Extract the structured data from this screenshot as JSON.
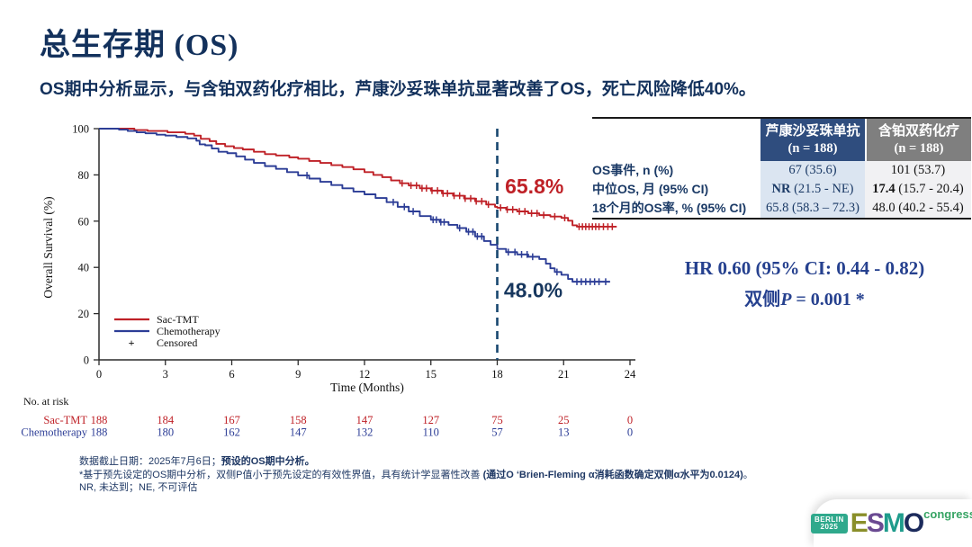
{
  "slide": {
    "title_cjk": "总生存期",
    "title_suffix": " (OS)",
    "subtitle": "OS期中分析显示，与含铂双药化疗相比，芦康沙妥珠单抗显著改善了OS，死亡风险降低40%。"
  },
  "chart_data": {
    "type": "line",
    "subtype": "kaplan-meier-step",
    "xlabel": "Time (Months)",
    "ylabel": "Overall Survival (%)",
    "xlim": [
      0,
      24
    ],
    "ylim": [
      0,
      100
    ],
    "xticks": [
      0,
      3,
      6,
      9,
      12,
      15,
      18,
      21,
      24
    ],
    "yticks": [
      0,
      20,
      40,
      60,
      80,
      100
    ],
    "grid": "off",
    "legend_position": "lower-left",
    "censored_label": "Censored",
    "reference_line": {
      "x": 18,
      "style": "dashed",
      "color": "#17466f"
    },
    "annotations": [
      {
        "text": "65.8%",
        "color": "#bf2127",
        "x": 18.35,
        "y": 72
      },
      {
        "text": "48.0%",
        "color": "#17375e",
        "x": 18.3,
        "y": 27
      }
    ],
    "series": [
      {
        "name": "Sac-TMT",
        "color": "#bf2127",
        "points": [
          [
            0,
            100
          ],
          [
            1.3,
            100
          ],
          [
            1.6,
            99.4
          ],
          [
            2.2,
            99
          ],
          [
            3.1,
            98.4
          ],
          [
            3.9,
            97.8
          ],
          [
            4.3,
            97
          ],
          [
            4.6,
            95.6
          ],
          [
            5,
            94.6
          ],
          [
            5.3,
            93.4
          ],
          [
            5.7,
            92.4
          ],
          [
            6.1,
            91.6
          ],
          [
            6.5,
            91
          ],
          [
            7,
            90
          ],
          [
            7.5,
            89
          ],
          [
            8,
            88.4
          ],
          [
            8.6,
            87.6
          ],
          [
            9,
            87
          ],
          [
            9.5,
            86
          ],
          [
            10,
            85.2
          ],
          [
            10.5,
            84.2
          ],
          [
            11,
            83.4
          ],
          [
            11.5,
            82.4
          ],
          [
            12,
            81.2
          ],
          [
            12.4,
            80
          ],
          [
            12.8,
            79
          ],
          [
            13.2,
            77.6
          ],
          [
            13.6,
            76.4
          ],
          [
            14,
            75.4
          ],
          [
            14.5,
            74.2
          ],
          [
            15,
            73.2
          ],
          [
            15.5,
            72
          ],
          [
            16,
            71
          ],
          [
            16.5,
            69.8
          ],
          [
            17,
            68.6
          ],
          [
            17.5,
            67.2
          ],
          [
            17.9,
            66.2
          ],
          [
            18,
            65.8
          ],
          [
            18.4,
            65
          ],
          [
            18.9,
            64.2
          ],
          [
            19.4,
            63.4
          ],
          [
            19.9,
            62.6
          ],
          [
            20.4,
            62
          ],
          [
            20.9,
            61.4
          ],
          [
            21.2,
            60.2
          ],
          [
            21.4,
            58.2
          ],
          [
            21.6,
            57.6
          ],
          [
            23.4,
            57.6
          ]
        ],
        "censor_x": [
          13.7,
          14.1,
          14.35,
          14.6,
          14.8,
          15.05,
          15.3,
          15.55,
          15.75,
          16.05,
          16.3,
          16.55,
          16.8,
          17.05,
          17.3,
          17.6,
          18.15,
          18.45,
          18.7,
          19,
          19.25,
          19.55,
          19.8,
          20.1,
          20.6,
          21.05,
          21.7,
          21.85,
          22,
          22.15,
          22.3,
          22.45,
          22.6,
          22.8,
          23,
          23.2
        ]
      },
      {
        "name": "Chemotherapy",
        "color": "#2c3d96",
        "points": [
          [
            0,
            100
          ],
          [
            0.9,
            99.6
          ],
          [
            1.3,
            99
          ],
          [
            1.7,
            98.4
          ],
          [
            2.1,
            98
          ],
          [
            2.6,
            97.4
          ],
          [
            3,
            97
          ],
          [
            3.5,
            96.4
          ],
          [
            4,
            95.8
          ],
          [
            4.4,
            94.8
          ],
          [
            4.55,
            93.2
          ],
          [
            4.8,
            92.8
          ],
          [
            5.1,
            91.4
          ],
          [
            5.4,
            90
          ],
          [
            5.8,
            89.4
          ],
          [
            6.2,
            88
          ],
          [
            6.6,
            86.6
          ],
          [
            7,
            85.2
          ],
          [
            7.5,
            83.8
          ],
          [
            8,
            82.6
          ],
          [
            8.5,
            81.2
          ],
          [
            9,
            79.8
          ],
          [
            9.5,
            78.4
          ],
          [
            10,
            77
          ],
          [
            10.5,
            75.6
          ],
          [
            11,
            74.2
          ],
          [
            11.5,
            72.8
          ],
          [
            12,
            71.6
          ],
          [
            12.5,
            70
          ],
          [
            13,
            68.2
          ],
          [
            13.5,
            66.2
          ],
          [
            14,
            64.2
          ],
          [
            14.5,
            62.2
          ],
          [
            15,
            60.6
          ],
          [
            15.4,
            59.6
          ],
          [
            15.8,
            58.4
          ],
          [
            16.2,
            57
          ],
          [
            16.6,
            55.4
          ],
          [
            17,
            53.4
          ],
          [
            17.4,
            51.4
          ],
          [
            17.7,
            49.8
          ],
          [
            18,
            48
          ],
          [
            18.4,
            46.6
          ],
          [
            18.9,
            45.6
          ],
          [
            19.4,
            44.6
          ],
          [
            19.9,
            43.6
          ],
          [
            20.2,
            41.6
          ],
          [
            20.4,
            39.6
          ],
          [
            20.6,
            38
          ],
          [
            20.9,
            36.8
          ],
          [
            21.2,
            35
          ],
          [
            21.4,
            33.8
          ],
          [
            23.1,
            33.8
          ]
        ],
        "censor_x": [
          9.4,
          13.3,
          13.8,
          14.2,
          15.1,
          15.25,
          15.45,
          15.6,
          16.3,
          16.7,
          16.9,
          17.1,
          17.3,
          18.5,
          18.8,
          19.1,
          19.35,
          19.6,
          20.7,
          21.6,
          21.8,
          22,
          22.2,
          22.4,
          22.6,
          22.9
        ]
      }
    ]
  },
  "summary_table": {
    "col_headers": [
      {
        "line1": "芦康沙妥珠单抗",
        "line2": "(n = 188)"
      },
      {
        "line1": "含铂双药化疗",
        "line2": "(n = 188)"
      }
    ],
    "rows": [
      {
        "label": "OS事件, n (%)",
        "cells": [
          [
            {
              "text": "67 (35.6)",
              "bold": false
            }
          ],
          [
            {
              "text": "101 (53.7)",
              "bold": false
            }
          ]
        ]
      },
      {
        "label": "中位OS, 月 (95% CI)",
        "cells": [
          [
            {
              "text": "NR",
              "bold": true
            },
            {
              "text": " (21.5 - NE)",
              "bold": false
            }
          ],
          [
            {
              "text": "17.4",
              "bold": true
            },
            {
              "text": " (15.7 - 20.4)",
              "bold": false
            }
          ]
        ]
      },
      {
        "label": "18个月的OS率, % (95% CI)",
        "cells": [
          [
            {
              "text": "65.8 (58.3 – 72.3)",
              "bold": false
            }
          ],
          [
            {
              "text": "48.0 (40.2 - 55.4)",
              "bold": false
            }
          ]
        ]
      }
    ]
  },
  "stats": {
    "hr_line": "HR 0.60 (95% CI: 0.44 - 0.82)",
    "p_prefix": "双侧",
    "p_italic": "P",
    "p_rest": " = 0.001 *"
  },
  "risk_table": {
    "heading": "No. at risk",
    "rows": [
      {
        "name": "Sac-TMT",
        "color": "#bf2127",
        "counts": [
          "188",
          "184",
          "167",
          "158",
          "147",
          "127",
          "75",
          "25",
          "0"
        ]
      },
      {
        "name": "Chemotherapy",
        "color": "#2c3d96",
        "counts": [
          "188",
          "180",
          "162",
          "147",
          "132",
          "110",
          "57",
          "13",
          "0"
        ]
      }
    ]
  },
  "footnotes": {
    "line1_normal": "数据截止日期：2025年7月6日；",
    "line1_bold": "预设的OS期中分析。",
    "line2_normal": "*基于预先设定的OS期中分析，双侧P值小于预先设定的有效性界值，具有统计学显著性改善 ",
    "line2_bold": "(通过O ‘Brien-Fleming α消耗函数确定双侧α水平为0.0124)",
    "line2_end": "。",
    "line3": "NR, 未达到；NE, 不可评估"
  },
  "logo": {
    "badge_line1": "BERLIN",
    "badge_line2": "2025",
    "esmo_letters": [
      {
        "ch": "E",
        "color": "#8a8f2a"
      },
      {
        "ch": "S",
        "color": "#6a4a92"
      },
      {
        "ch": "M",
        "color": "#1f9c8c"
      },
      {
        "ch": "O",
        "color": "#1c2b5c"
      }
    ],
    "congress": "congress"
  }
}
